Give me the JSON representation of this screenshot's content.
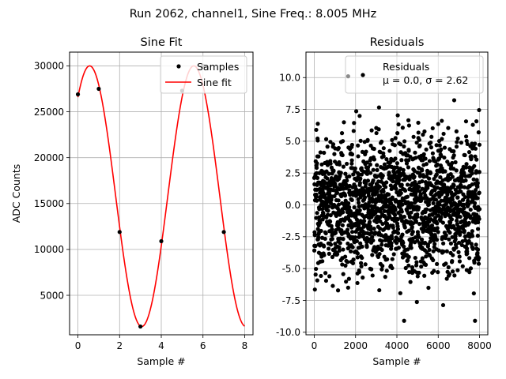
{
  "suptitle": "Run 2062, channel1, Sine Freq.: 8.005 MHz",
  "chart_data": [
    {
      "type": "line",
      "title": "Sine Fit",
      "xlabel": "Sample #",
      "ylabel": "ADC Counts",
      "xlim": [
        -0.4,
        8.4
      ],
      "ylim": [
        700,
        31500
      ],
      "xticks": [
        0,
        2,
        4,
        6,
        8
      ],
      "yticks": [
        5000,
        10000,
        15000,
        20000,
        25000,
        30000
      ],
      "grid": true,
      "legend_position": "top-right",
      "series": [
        {
          "name": "Samples",
          "kind": "scatter",
          "color": "#000000",
          "x": [
            0,
            1,
            2,
            3,
            4,
            5,
            6,
            7
          ],
          "y": [
            26900,
            27500,
            11900,
            1600,
            10900,
            27300,
            30000,
            11900
          ]
        },
        {
          "name": "Sine fit",
          "kind": "line",
          "color": "#ff0000",
          "model": {
            "amplitude": 14200,
            "offset": 15800,
            "frequency_cycles_per_sample": 0.20014,
            "phase": 0.8625
          },
          "x_range": [
            0,
            8
          ]
        }
      ]
    },
    {
      "type": "scatter",
      "title": "Residuals",
      "xlabel": "Sample #",
      "ylabel": "",
      "xlim": [
        -400,
        8400
      ],
      "ylim": [
        -10.2,
        12.0
      ],
      "xticks": [
        0,
        2000,
        4000,
        6000,
        8000
      ],
      "yticks": [
        -10.0,
        -7.5,
        -5.0,
        -2.5,
        0.0,
        2.5,
        5.0,
        7.5,
        10.0
      ],
      "grid": true,
      "legend_position": "top-right",
      "series": [
        {
          "name": "Residuals",
          "color": "#000000",
          "n_points": 8000,
          "x_range": [
            0,
            8000
          ],
          "mean": 0.0,
          "std": 2.62,
          "min": -9.1,
          "max": 10.1
        }
      ],
      "legend_text_line1": "Residuals",
      "legend_text_line2": "μ = 0.0, σ = 2.62"
    }
  ]
}
